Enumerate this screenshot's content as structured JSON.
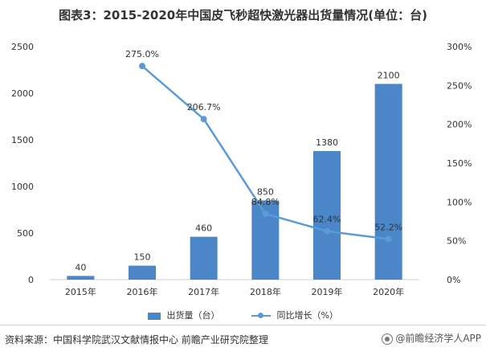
{
  "title": "图表3：2015-2020年中国皮飞秒超快激光器出货量情况(单位：台)",
  "source": "资料来源：中国科学院武汉文献情报中心 前瞻产业研究院整理",
  "watermark": "@前瞻经济学人APP",
  "colors": {
    "bar": "#4a86c8",
    "line": "#5b9bd5",
    "axis": "#d0d0d0",
    "text": "#333333"
  },
  "chart_data": {
    "type": "bar",
    "categories": [
      "2015年",
      "2016年",
      "2017年",
      "2018年",
      "2019年",
      "2020年"
    ],
    "series": [
      {
        "name": "出货量（台）",
        "type": "bar",
        "axis": "left",
        "values": [
          40,
          150,
          460,
          850,
          1380,
          2100
        ]
      },
      {
        "name": "同比增长（%）",
        "type": "line",
        "axis": "right",
        "values": [
          null,
          275.0,
          206.7,
          84.8,
          62.4,
          52.2
        ]
      }
    ],
    "bar_labels": [
      "40",
      "150",
      "460",
      "850",
      "1380",
      "2100"
    ],
    "line_labels": [
      "",
      "275.0%",
      "206.7%",
      "84.8%",
      "62.4%",
      "52.2%"
    ],
    "y_left": {
      "min": 0,
      "max": 2500,
      "ticks": [
        "0",
        "500",
        "1000",
        "1500",
        "2000",
        "2500"
      ]
    },
    "y_right": {
      "min": 0,
      "max": 300,
      "ticks": [
        "0%",
        "50%",
        "100%",
        "150%",
        "200%",
        "250%",
        "300%"
      ]
    },
    "legend_position": "bottom",
    "grid": false
  }
}
